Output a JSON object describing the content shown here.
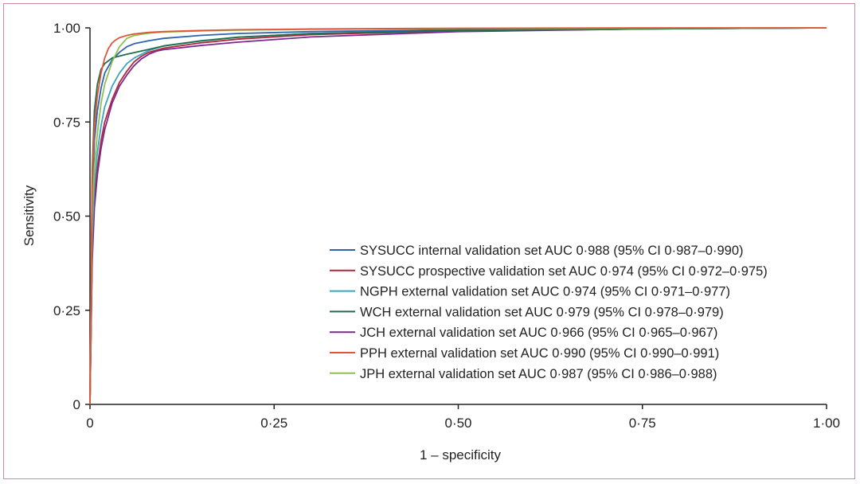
{
  "chart_data": {
    "type": "line",
    "title": "",
    "xlabel": "1 – specificity",
    "ylabel": "Sensitivity",
    "xlim": [
      0,
      1
    ],
    "ylim": [
      0,
      1
    ],
    "x_ticks": [
      "0",
      "0·25",
      "0·50",
      "0·75",
      "1·00"
    ],
    "y_ticks": [
      "0",
      "0·25",
      "0·50",
      "0·75",
      "1·00"
    ],
    "grid": false,
    "legend_position": "bottom-right",
    "series": [
      {
        "name": "SYSUCC internal validation set AUC 0·988 (95% CI 0·987–0·990)",
        "color": "#2e63b0",
        "x": [
          0,
          0.003,
          0.006,
          0.01,
          0.015,
          0.02,
          0.03,
          0.04,
          0.05,
          0.06,
          0.08,
          0.1,
          0.15,
          0.2,
          0.3,
          0.5,
          0.75,
          1.0
        ],
        "y": [
          0,
          0.55,
          0.7,
          0.78,
          0.84,
          0.88,
          0.915,
          0.935,
          0.95,
          0.958,
          0.966,
          0.972,
          0.98,
          0.985,
          0.99,
          0.995,
          0.998,
          1.0
        ]
      },
      {
        "name": "SYSUCC prospective validation set AUC 0·974 (95% CI 0·972–0·975)",
        "color": "#b3273e",
        "x": [
          0,
          0.003,
          0.006,
          0.01,
          0.015,
          0.02,
          0.03,
          0.04,
          0.05,
          0.06,
          0.07,
          0.08,
          0.1,
          0.15,
          0.2,
          0.3,
          0.5,
          0.75,
          1.0
        ],
        "y": [
          0,
          0.4,
          0.55,
          0.63,
          0.7,
          0.75,
          0.81,
          0.855,
          0.885,
          0.91,
          0.925,
          0.935,
          0.946,
          0.96,
          0.97,
          0.982,
          0.992,
          0.997,
          1.0
        ]
      },
      {
        "name": "NGPH external validation set AUC 0·974 (95% CI 0·971–0·977)",
        "color": "#3aa7bf",
        "x": [
          0,
          0.003,
          0.006,
          0.01,
          0.015,
          0.02,
          0.03,
          0.04,
          0.05,
          0.06,
          0.08,
          0.1,
          0.15,
          0.2,
          0.3,
          0.5,
          0.75,
          1.0
        ],
        "y": [
          0,
          0.45,
          0.58,
          0.67,
          0.74,
          0.79,
          0.845,
          0.88,
          0.905,
          0.92,
          0.94,
          0.952,
          0.966,
          0.975,
          0.985,
          0.993,
          0.997,
          1.0
        ]
      },
      {
        "name": "WCH external validation set AUC 0·979 (95% CI 0·978–0·979)",
        "color": "#1f6e4e",
        "x": [
          0,
          0.003,
          0.006,
          0.01,
          0.015,
          0.02,
          0.03,
          0.05,
          0.08,
          0.1,
          0.15,
          0.2,
          0.3,
          0.5,
          0.75,
          1.0
        ],
        "y": [
          0,
          0.62,
          0.78,
          0.85,
          0.89,
          0.905,
          0.92,
          0.93,
          0.943,
          0.952,
          0.965,
          0.975,
          0.985,
          0.993,
          0.997,
          1.0
        ]
      },
      {
        "name": "JCH external validation set AUC 0·966 (95% CI 0·965–0·967)",
        "color": "#7a2a8c",
        "x": [
          0,
          0.003,
          0.006,
          0.01,
          0.015,
          0.02,
          0.03,
          0.04,
          0.05,
          0.06,
          0.07,
          0.08,
          0.09,
          0.1,
          0.15,
          0.2,
          0.3,
          0.5,
          0.75,
          1.0
        ],
        "y": [
          0,
          0.38,
          0.52,
          0.61,
          0.68,
          0.73,
          0.8,
          0.845,
          0.875,
          0.9,
          0.918,
          0.93,
          0.938,
          0.942,
          0.953,
          0.962,
          0.976,
          0.99,
          0.997,
          1.0
        ]
      },
      {
        "name": "PPH external validation set AUC 0·990 (95% CI 0·990–0·991)",
        "color": "#e0553a",
        "x": [
          0,
          0.003,
          0.006,
          0.01,
          0.015,
          0.02,
          0.025,
          0.03,
          0.035,
          0.04,
          0.05,
          0.06,
          0.08,
          0.1,
          0.15,
          0.2,
          0.3,
          0.5,
          0.75,
          1.0
        ],
        "y": [
          0,
          0.6,
          0.74,
          0.82,
          0.88,
          0.92,
          0.945,
          0.96,
          0.968,
          0.974,
          0.98,
          0.984,
          0.988,
          0.99,
          0.993,
          0.995,
          0.997,
          0.999,
          1.0,
          1.0
        ]
      },
      {
        "name": "JPH external validation set AUC 0·987 (95% CI 0·986–0·988)",
        "color": "#8cc152",
        "x": [
          0,
          0.003,
          0.006,
          0.01,
          0.015,
          0.02,
          0.03,
          0.04,
          0.05,
          0.06,
          0.08,
          0.1,
          0.15,
          0.2,
          0.3,
          0.5,
          0.75,
          1.0
        ],
        "y": [
          0,
          0.5,
          0.63,
          0.72,
          0.8,
          0.85,
          0.91,
          0.95,
          0.972,
          0.98,
          0.986,
          0.989,
          0.992,
          0.994,
          0.996,
          0.998,
          0.999,
          1.0
        ]
      }
    ]
  }
}
